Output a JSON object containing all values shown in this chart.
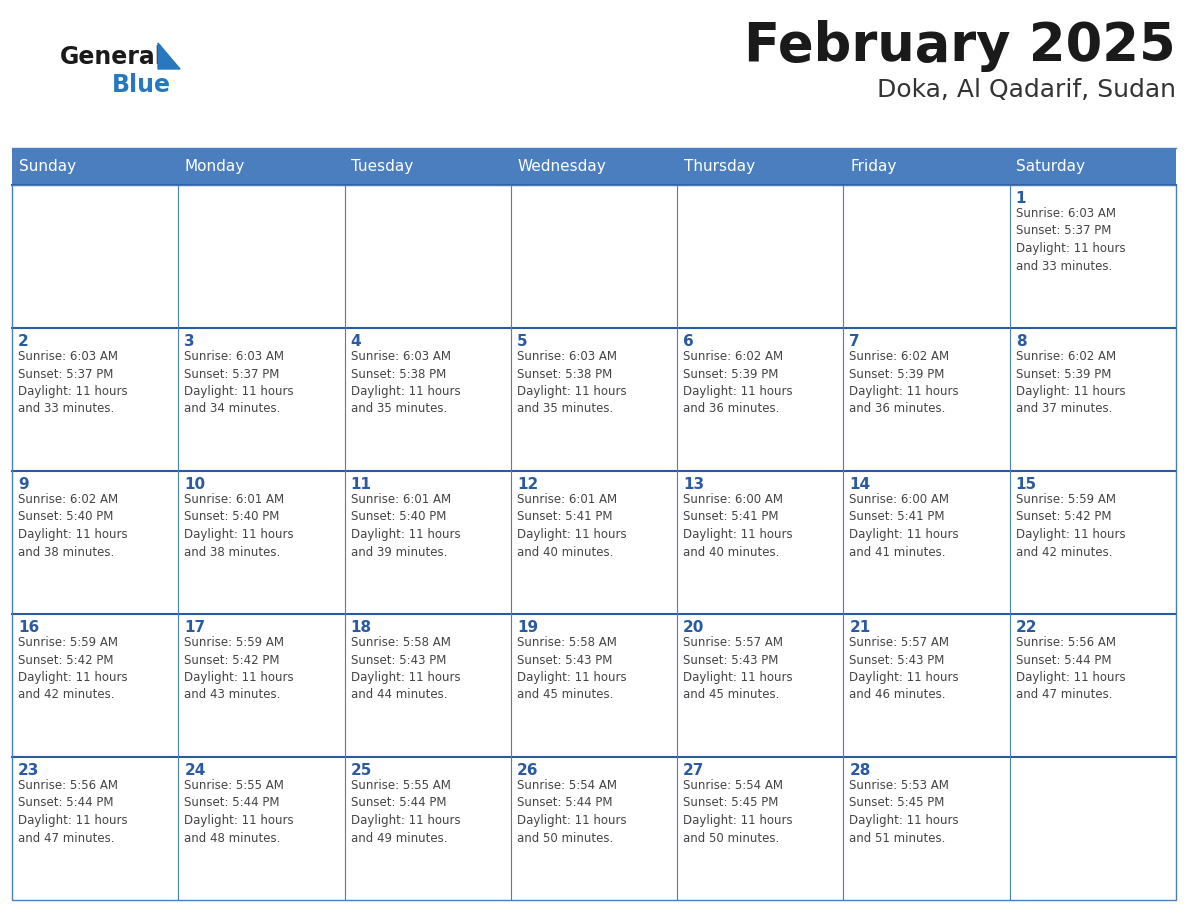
{
  "title": "February 2025",
  "subtitle": "Doka, Al Qadarif, Sudan",
  "days_of_week": [
    "Sunday",
    "Monday",
    "Tuesday",
    "Wednesday",
    "Thursday",
    "Friday",
    "Saturday"
  ],
  "header_bg_color": "#4a7ebf",
  "header_text_color": "#ffffff",
  "cell_bg_color": "#ffffff",
  "cell_alt_bg_color": "#f0f4f8",
  "cell_border_color": "#4a7ebf",
  "row_border_color": "#2a5a9f",
  "day_number_color": "#2a5a9f",
  "info_text_color": "#444444",
  "title_color": "#1a1a1a",
  "subtitle_color": "#333333",
  "logo_general_color": "#1a1a1a",
  "logo_blue_color": "#2878c0",
  "weeks": [
    [
      {
        "day": null,
        "info": ""
      },
      {
        "day": null,
        "info": ""
      },
      {
        "day": null,
        "info": ""
      },
      {
        "day": null,
        "info": ""
      },
      {
        "day": null,
        "info": ""
      },
      {
        "day": null,
        "info": ""
      },
      {
        "day": 1,
        "info": "Sunrise: 6:03 AM\nSunset: 5:37 PM\nDaylight: 11 hours\nand 33 minutes."
      }
    ],
    [
      {
        "day": 2,
        "info": "Sunrise: 6:03 AM\nSunset: 5:37 PM\nDaylight: 11 hours\nand 33 minutes."
      },
      {
        "day": 3,
        "info": "Sunrise: 6:03 AM\nSunset: 5:37 PM\nDaylight: 11 hours\nand 34 minutes."
      },
      {
        "day": 4,
        "info": "Sunrise: 6:03 AM\nSunset: 5:38 PM\nDaylight: 11 hours\nand 35 minutes."
      },
      {
        "day": 5,
        "info": "Sunrise: 6:03 AM\nSunset: 5:38 PM\nDaylight: 11 hours\nand 35 minutes."
      },
      {
        "day": 6,
        "info": "Sunrise: 6:02 AM\nSunset: 5:39 PM\nDaylight: 11 hours\nand 36 minutes."
      },
      {
        "day": 7,
        "info": "Sunrise: 6:02 AM\nSunset: 5:39 PM\nDaylight: 11 hours\nand 36 minutes."
      },
      {
        "day": 8,
        "info": "Sunrise: 6:02 AM\nSunset: 5:39 PM\nDaylight: 11 hours\nand 37 minutes."
      }
    ],
    [
      {
        "day": 9,
        "info": "Sunrise: 6:02 AM\nSunset: 5:40 PM\nDaylight: 11 hours\nand 38 minutes."
      },
      {
        "day": 10,
        "info": "Sunrise: 6:01 AM\nSunset: 5:40 PM\nDaylight: 11 hours\nand 38 minutes."
      },
      {
        "day": 11,
        "info": "Sunrise: 6:01 AM\nSunset: 5:40 PM\nDaylight: 11 hours\nand 39 minutes."
      },
      {
        "day": 12,
        "info": "Sunrise: 6:01 AM\nSunset: 5:41 PM\nDaylight: 11 hours\nand 40 minutes."
      },
      {
        "day": 13,
        "info": "Sunrise: 6:00 AM\nSunset: 5:41 PM\nDaylight: 11 hours\nand 40 minutes."
      },
      {
        "day": 14,
        "info": "Sunrise: 6:00 AM\nSunset: 5:41 PM\nDaylight: 11 hours\nand 41 minutes."
      },
      {
        "day": 15,
        "info": "Sunrise: 5:59 AM\nSunset: 5:42 PM\nDaylight: 11 hours\nand 42 minutes."
      }
    ],
    [
      {
        "day": 16,
        "info": "Sunrise: 5:59 AM\nSunset: 5:42 PM\nDaylight: 11 hours\nand 42 minutes."
      },
      {
        "day": 17,
        "info": "Sunrise: 5:59 AM\nSunset: 5:42 PM\nDaylight: 11 hours\nand 43 minutes."
      },
      {
        "day": 18,
        "info": "Sunrise: 5:58 AM\nSunset: 5:43 PM\nDaylight: 11 hours\nand 44 minutes."
      },
      {
        "day": 19,
        "info": "Sunrise: 5:58 AM\nSunset: 5:43 PM\nDaylight: 11 hours\nand 45 minutes."
      },
      {
        "day": 20,
        "info": "Sunrise: 5:57 AM\nSunset: 5:43 PM\nDaylight: 11 hours\nand 45 minutes."
      },
      {
        "day": 21,
        "info": "Sunrise: 5:57 AM\nSunset: 5:43 PM\nDaylight: 11 hours\nand 46 minutes."
      },
      {
        "day": 22,
        "info": "Sunrise: 5:56 AM\nSunset: 5:44 PM\nDaylight: 11 hours\nand 47 minutes."
      }
    ],
    [
      {
        "day": 23,
        "info": "Sunrise: 5:56 AM\nSunset: 5:44 PM\nDaylight: 11 hours\nand 47 minutes."
      },
      {
        "day": 24,
        "info": "Sunrise: 5:55 AM\nSunset: 5:44 PM\nDaylight: 11 hours\nand 48 minutes."
      },
      {
        "day": 25,
        "info": "Sunrise: 5:55 AM\nSunset: 5:44 PM\nDaylight: 11 hours\nand 49 minutes."
      },
      {
        "day": 26,
        "info": "Sunrise: 5:54 AM\nSunset: 5:44 PM\nDaylight: 11 hours\nand 50 minutes."
      },
      {
        "day": 27,
        "info": "Sunrise: 5:54 AM\nSunset: 5:45 PM\nDaylight: 11 hours\nand 50 minutes."
      },
      {
        "day": 28,
        "info": "Sunrise: 5:53 AM\nSunset: 5:45 PM\nDaylight: 11 hours\nand 51 minutes."
      },
      {
        "day": null,
        "info": ""
      }
    ]
  ]
}
